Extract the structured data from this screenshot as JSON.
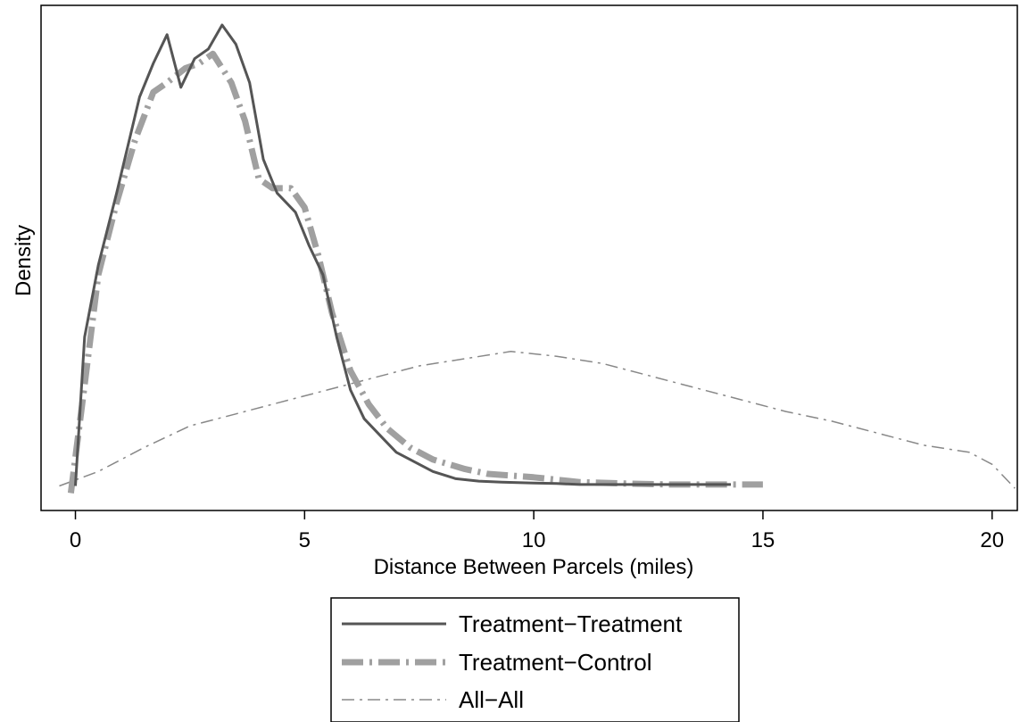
{
  "chart_data": {
    "type": "line",
    "xlabel": "Distance Between Parcels (miles)",
    "ylabel": "Density",
    "xlim": [
      -0.75,
      20.55
    ],
    "ylim": [
      0,
      1
    ],
    "xticks": [
      0,
      5,
      10,
      15,
      20
    ],
    "yticks": [],
    "grid": false,
    "legend_position": "bottom-center",
    "series": [
      {
        "name": "Treatment−Treatment",
        "style": "solid",
        "color": "#555555",
        "points": [
          [
            0,
            0.04
          ],
          [
            0.2,
            0.35
          ],
          [
            0.5,
            0.5
          ],
          [
            0.9,
            0.65
          ],
          [
            1.4,
            0.85
          ],
          [
            1.7,
            0.92
          ],
          [
            2.0,
            0.98
          ],
          [
            2.3,
            0.87
          ],
          [
            2.6,
            0.93
          ],
          [
            2.9,
            0.95
          ],
          [
            3.2,
            1.0
          ],
          [
            3.5,
            0.96
          ],
          [
            3.8,
            0.88
          ],
          [
            4.1,
            0.72
          ],
          [
            4.4,
            0.65
          ],
          [
            4.8,
            0.61
          ],
          [
            5.1,
            0.54
          ],
          [
            5.4,
            0.48
          ],
          [
            5.7,
            0.35
          ],
          [
            6.0,
            0.24
          ],
          [
            6.3,
            0.18
          ],
          [
            6.7,
            0.14
          ],
          [
            7.0,
            0.11
          ],
          [
            7.4,
            0.09
          ],
          [
            7.8,
            0.07
          ],
          [
            8.3,
            0.055
          ],
          [
            8.8,
            0.05
          ],
          [
            9.3,
            0.048
          ],
          [
            10.0,
            0.046
          ],
          [
            10.5,
            0.045
          ],
          [
            11.0,
            0.043
          ],
          [
            12.0,
            0.043
          ],
          [
            14.0,
            0.043
          ],
          [
            14.3,
            0.043
          ]
        ]
      },
      {
        "name": "Treatment−Control",
        "style": "longdash-dot",
        "color": "#a0a0a0",
        "points": [
          [
            -0.1,
            0.025
          ],
          [
            0.2,
            0.25
          ],
          [
            0.5,
            0.48
          ],
          [
            0.9,
            0.63
          ],
          [
            1.3,
            0.76
          ],
          [
            1.7,
            0.86
          ],
          [
            2.0,
            0.88
          ],
          [
            2.4,
            0.91
          ],
          [
            2.7,
            0.92
          ],
          [
            3.0,
            0.94
          ],
          [
            3.4,
            0.88
          ],
          [
            3.7,
            0.8
          ],
          [
            4.0,
            0.68
          ],
          [
            4.3,
            0.66
          ],
          [
            4.7,
            0.66
          ],
          [
            5.0,
            0.62
          ],
          [
            5.3,
            0.52
          ],
          [
            5.6,
            0.4
          ],
          [
            6.0,
            0.28
          ],
          [
            6.4,
            0.21
          ],
          [
            6.8,
            0.16
          ],
          [
            7.3,
            0.12
          ],
          [
            7.8,
            0.095
          ],
          [
            8.5,
            0.075
          ],
          [
            9.0,
            0.065
          ],
          [
            10.0,
            0.058
          ],
          [
            11.0,
            0.048
          ],
          [
            12.0,
            0.045
          ],
          [
            13.0,
            0.043
          ],
          [
            15.0,
            0.043
          ]
        ]
      },
      {
        "name": "All−All",
        "style": "dash-dot",
        "color": "#888888",
        "points": [
          [
            -0.35,
            0.04
          ],
          [
            0.5,
            0.07
          ],
          [
            1.5,
            0.12
          ],
          [
            2.5,
            0.165
          ],
          [
            3.5,
            0.19
          ],
          [
            4.5,
            0.215
          ],
          [
            5.5,
            0.24
          ],
          [
            6.5,
            0.265
          ],
          [
            7.5,
            0.29
          ],
          [
            8.5,
            0.305
          ],
          [
            9.5,
            0.32
          ],
          [
            10.5,
            0.31
          ],
          [
            11.5,
            0.295
          ],
          [
            12.5,
            0.27
          ],
          [
            13.5,
            0.245
          ],
          [
            14.5,
            0.22
          ],
          [
            15.5,
            0.195
          ],
          [
            16.5,
            0.175
          ],
          [
            17.5,
            0.15
          ],
          [
            18.5,
            0.125
          ],
          [
            19.5,
            0.11
          ],
          [
            20.0,
            0.085
          ],
          [
            20.5,
            0.035
          ]
        ]
      }
    ]
  }
}
